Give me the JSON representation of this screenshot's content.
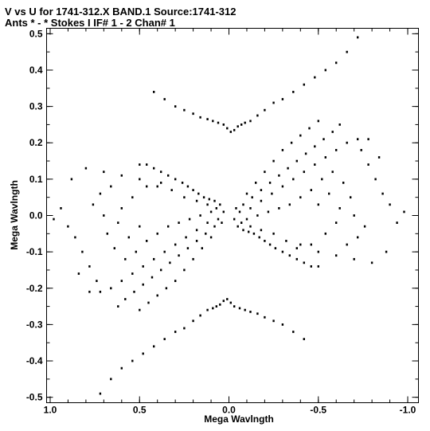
{
  "chart_data": {
    "type": "scatter",
    "title": "V vs U for 1741-312.X BAND.1   Source:1741-312",
    "subtitle": "Ants * - *     Stokes I  IF# 1 - 2  Chan# 1",
    "xlabel": "Mega Wavlngth",
    "ylabel": "Mega Wavlngth",
    "xlim": [
      1.02,
      -1.06
    ],
    "ylim": [
      -0.515,
      0.515
    ],
    "x_ticks": [
      "1.0",
      "0.5",
      "0.0",
      "-0.5",
      "-1.0"
    ],
    "y_ticks": [
      "-0.5",
      "-0.4",
      "-0.3",
      "-0.2",
      "-0.1",
      "0.0",
      "0.1",
      "0.2",
      "0.3",
      "0.4",
      "0.5"
    ],
    "grid": false,
    "marker_color": "#000000",
    "series": [
      {
        "points": [
          [
            0.05,
            0.03
          ],
          [
            0.08,
            0.04
          ],
          [
            0.11,
            0.045
          ],
          [
            0.14,
            0.05
          ],
          [
            0.17,
            0.06
          ],
          [
            0.2,
            0.07
          ],
          [
            0.23,
            0.08
          ],
          [
            0.26,
            0.09
          ],
          [
            0.3,
            0.1
          ],
          [
            0.34,
            0.11
          ],
          [
            0.38,
            0.12
          ],
          [
            0.42,
            0.13
          ],
          [
            0.46,
            0.14
          ],
          [
            0.5,
            0.14
          ],
          [
            0.03,
            0.01
          ],
          [
            0.07,
            0.02
          ],
          [
            0.12,
            0.03
          ],
          [
            0.18,
            0.04
          ],
          [
            0.25,
            0.05
          ],
          [
            0.32,
            0.07
          ],
          [
            0.4,
            0.08
          ],
          [
            0.5,
            0.1
          ],
          [
            0.6,
            0.11
          ],
          [
            0.7,
            0.12
          ],
          [
            0.8,
            0.13
          ],
          [
            0.88,
            0.1
          ],
          [
            0.94,
            0.02
          ],
          [
            0.98,
            -0.01
          ],
          [
            0.06,
            -0.01
          ],
          [
            0.12,
            -0.02
          ],
          [
            0.18,
            -0.04
          ],
          [
            0.24,
            -0.06
          ],
          [
            0.3,
            -0.08
          ],
          [
            0.36,
            -0.1
          ],
          [
            0.42,
            -0.12
          ],
          [
            0.48,
            -0.14
          ],
          [
            0.54,
            -0.16
          ],
          [
            0.6,
            -0.18
          ],
          [
            0.66,
            -0.2
          ],
          [
            0.72,
            -0.21
          ],
          [
            0.78,
            -0.21
          ],
          [
            0.04,
            -0.02
          ],
          [
            0.08,
            -0.03
          ],
          [
            0.13,
            -0.05
          ],
          [
            0.18,
            -0.07
          ],
          [
            0.23,
            -0.09
          ],
          [
            0.28,
            -0.11
          ],
          [
            0.33,
            -0.13
          ],
          [
            0.38,
            -0.15
          ],
          [
            0.43,
            -0.17
          ],
          [
            0.48,
            -0.19
          ],
          [
            0.53,
            -0.21
          ],
          [
            0.58,
            -0.23
          ],
          [
            0.62,
            -0.25
          ],
          [
            0.1,
            -0.06
          ],
          [
            0.15,
            -0.09
          ],
          [
            0.2,
            -0.12
          ],
          [
            0.25,
            -0.15
          ],
          [
            0.3,
            -0.18
          ],
          [
            0.35,
            -0.2
          ],
          [
            0.4,
            -0.22
          ],
          [
            0.45,
            -0.24
          ],
          [
            0.5,
            -0.26
          ],
          [
            0.9,
            -0.03
          ],
          [
            0.86,
            -0.06
          ],
          [
            0.82,
            -0.1
          ],
          [
            0.78,
            -0.14
          ],
          [
            0.84,
            -0.16
          ],
          [
            0.74,
            -0.18
          ],
          [
            0.68,
            -0.05
          ],
          [
            0.64,
            -0.09
          ],
          [
            0.56,
            -0.06
          ],
          [
            0.5,
            -0.03
          ],
          [
            0.6,
            0.02
          ],
          [
            0.54,
            0.05
          ],
          [
            0.46,
            0.08
          ],
          [
            0.38,
            0.09
          ],
          [
            0.66,
            0.08
          ],
          [
            0.72,
            0.06
          ],
          [
            0.76,
            0.03
          ],
          [
            0.7,
            0.0
          ],
          [
            0.62,
            -0.02
          ],
          [
            0.58,
            -0.12
          ],
          [
            0.52,
            -0.1
          ],
          [
            0.46,
            -0.07
          ],
          [
            0.4,
            -0.05
          ],
          [
            0.34,
            -0.03
          ],
          [
            0.28,
            -0.02
          ],
          [
            0.22,
            -0.01
          ],
          [
            0.16,
            0.0
          ],
          [
            0.1,
            0.01
          ],
          [
            0.42,
            0.34
          ],
          [
            0.36,
            0.32
          ],
          [
            0.3,
            0.3
          ],
          [
            0.25,
            0.29
          ],
          [
            0.2,
            0.28
          ],
          [
            0.16,
            0.27
          ],
          [
            0.12,
            0.265
          ],
          [
            0.09,
            0.26
          ],
          [
            0.06,
            0.255
          ],
          [
            0.03,
            0.25
          ],
          [
            0.01,
            0.24
          ],
          [
            -0.01,
            0.23
          ],
          [
            -0.03,
            0.235
          ],
          [
            -0.05,
            0.245
          ],
          [
            -0.07,
            0.25
          ],
          [
            -0.09,
            0.255
          ],
          [
            -0.12,
            0.26
          ],
          [
            -0.16,
            0.275
          ],
          [
            -0.2,
            0.29
          ],
          [
            -0.25,
            0.31
          ],
          [
            -0.3,
            0.32
          ],
          [
            -0.36,
            0.34
          ],
          [
            -0.42,
            0.36
          ],
          [
            -0.48,
            0.38
          ],
          [
            -0.54,
            0.4
          ],
          [
            -0.6,
            0.42
          ],
          [
            -0.66,
            0.45
          ],
          [
            -0.72,
            0.49
          ],
          [
            -0.05,
            -0.03
          ],
          [
            -0.08,
            -0.04
          ],
          [
            -0.11,
            -0.045
          ],
          [
            -0.14,
            -0.05
          ],
          [
            -0.17,
            -0.06
          ],
          [
            -0.2,
            -0.07
          ],
          [
            -0.23,
            -0.08
          ],
          [
            -0.26,
            -0.09
          ],
          [
            -0.3,
            -0.1
          ],
          [
            -0.34,
            -0.11
          ],
          [
            -0.38,
            -0.12
          ],
          [
            -0.42,
            -0.13
          ],
          [
            -0.46,
            -0.14
          ],
          [
            -0.5,
            -0.14
          ],
          [
            -0.03,
            -0.01
          ],
          [
            -0.07,
            -0.02
          ],
          [
            -0.12,
            -0.03
          ],
          [
            -0.18,
            -0.04
          ],
          [
            -0.25,
            -0.05
          ],
          [
            -0.32,
            -0.07
          ],
          [
            -0.4,
            -0.08
          ],
          [
            -0.5,
            -0.1
          ],
          [
            -0.6,
            -0.11
          ],
          [
            -0.7,
            -0.12
          ],
          [
            -0.8,
            -0.13
          ],
          [
            -0.88,
            -0.1
          ],
          [
            -0.94,
            -0.02
          ],
          [
            -0.98,
            0.01
          ],
          [
            -0.06,
            0.01
          ],
          [
            -0.12,
            0.02
          ],
          [
            -0.18,
            0.04
          ],
          [
            -0.24,
            0.06
          ],
          [
            -0.3,
            0.08
          ],
          [
            -0.36,
            0.1
          ],
          [
            -0.42,
            0.12
          ],
          [
            -0.48,
            0.14
          ],
          [
            -0.54,
            0.16
          ],
          [
            -0.6,
            0.18
          ],
          [
            -0.66,
            0.2
          ],
          [
            -0.72,
            0.21
          ],
          [
            -0.78,
            0.21
          ],
          [
            -0.04,
            0.02
          ],
          [
            -0.08,
            0.03
          ],
          [
            -0.13,
            0.05
          ],
          [
            -0.18,
            0.07
          ],
          [
            -0.23,
            0.09
          ],
          [
            -0.28,
            0.11
          ],
          [
            -0.33,
            0.13
          ],
          [
            -0.38,
            0.15
          ],
          [
            -0.43,
            0.17
          ],
          [
            -0.48,
            0.19
          ],
          [
            -0.53,
            0.21
          ],
          [
            -0.58,
            0.23
          ],
          [
            -0.62,
            0.25
          ],
          [
            -0.1,
            0.06
          ],
          [
            -0.15,
            0.09
          ],
          [
            -0.2,
            0.12
          ],
          [
            -0.25,
            0.15
          ],
          [
            -0.3,
            0.18
          ],
          [
            -0.35,
            0.2
          ],
          [
            -0.4,
            0.22
          ],
          [
            -0.45,
            0.24
          ],
          [
            -0.5,
            0.26
          ],
          [
            -0.9,
            0.03
          ],
          [
            -0.86,
            0.06
          ],
          [
            -0.82,
            0.1
          ],
          [
            -0.78,
            0.14
          ],
          [
            -0.84,
            0.16
          ],
          [
            -0.74,
            0.18
          ],
          [
            -0.68,
            0.05
          ],
          [
            -0.64,
            0.09
          ],
          [
            -0.56,
            0.06
          ],
          [
            -0.5,
            0.03
          ],
          [
            -0.6,
            -0.02
          ],
          [
            -0.54,
            -0.05
          ],
          [
            -0.46,
            -0.08
          ],
          [
            -0.38,
            -0.09
          ],
          [
            -0.66,
            -0.08
          ],
          [
            -0.72,
            -0.06
          ],
          [
            -0.76,
            -0.03
          ],
          [
            -0.7,
            0.0
          ],
          [
            -0.62,
            0.02
          ],
          [
            -0.58,
            0.12
          ],
          [
            -0.52,
            0.1
          ],
          [
            -0.46,
            0.07
          ],
          [
            -0.4,
            0.05
          ],
          [
            -0.34,
            0.03
          ],
          [
            -0.28,
            0.02
          ],
          [
            -0.22,
            0.01
          ],
          [
            -0.16,
            0.0
          ],
          [
            -0.1,
            -0.01
          ],
          [
            -0.42,
            -0.34
          ],
          [
            -0.36,
            -0.32
          ],
          [
            -0.3,
            -0.3
          ],
          [
            -0.25,
            -0.29
          ],
          [
            -0.2,
            -0.28
          ],
          [
            -0.16,
            -0.27
          ],
          [
            -0.12,
            -0.265
          ],
          [
            -0.09,
            -0.26
          ],
          [
            -0.06,
            -0.255
          ],
          [
            -0.03,
            -0.25
          ],
          [
            -0.01,
            -0.24
          ],
          [
            0.01,
            -0.23
          ],
          [
            0.03,
            -0.235
          ],
          [
            0.05,
            -0.245
          ],
          [
            0.07,
            -0.25
          ],
          [
            0.09,
            -0.255
          ],
          [
            0.12,
            -0.26
          ],
          [
            0.16,
            -0.275
          ],
          [
            0.2,
            -0.29
          ],
          [
            0.25,
            -0.31
          ],
          [
            0.3,
            -0.32
          ],
          [
            0.36,
            -0.34
          ],
          [
            0.42,
            -0.36
          ],
          [
            0.48,
            -0.38
          ],
          [
            0.54,
            -0.4
          ],
          [
            0.6,
            -0.42
          ],
          [
            0.66,
            -0.45
          ],
          [
            0.72,
            -0.49
          ]
        ]
      }
    ]
  }
}
